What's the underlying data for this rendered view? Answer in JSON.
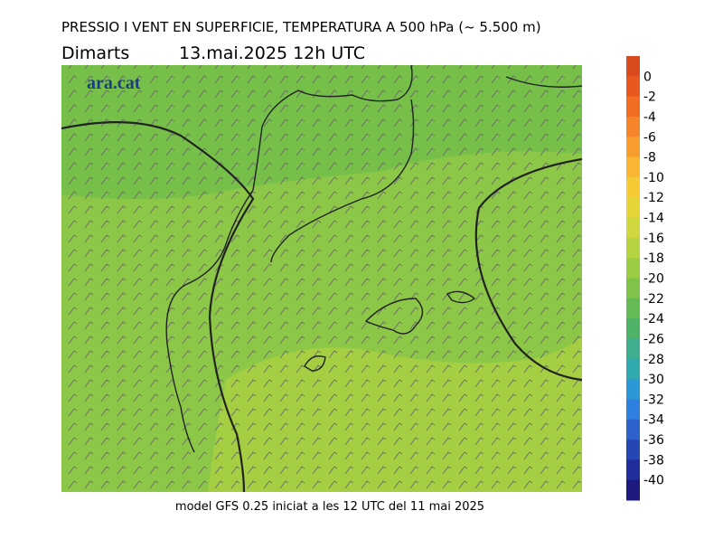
{
  "header": {
    "title": "PRESSIO I VENT EN SUPERFICIE, TEMPERATURA A 500 hPa (~ 5.500 m)",
    "day": "Dimarts",
    "date": "13.mai.2025 12h UTC"
  },
  "logo": "ara.cat",
  "colorbar": {
    "ticks": [
      0,
      -2,
      -4,
      -6,
      -8,
      -10,
      -12,
      -14,
      -16,
      -18,
      -20,
      -22,
      -24,
      -26,
      -28,
      -30,
      -32,
      -34,
      -36,
      -38,
      -40
    ],
    "colors": [
      "#d94a1e",
      "#e8581f",
      "#f06d22",
      "#f5852a",
      "#f89e2e",
      "#f8b632",
      "#f4ca35",
      "#e6d43a",
      "#cfd83e",
      "#b6d43f",
      "#9bcc44",
      "#7fc34a",
      "#64ba53",
      "#4eb367",
      "#3fae8e",
      "#2fa8ae",
      "#2d98d6",
      "#2f7fde",
      "#2c62c9",
      "#2547b4",
      "#1f2e9a",
      "#1c1a7c"
    ]
  },
  "footer": "model GFS 0.25 iniciat a les 12 UTC del 11 mai 2025"
}
